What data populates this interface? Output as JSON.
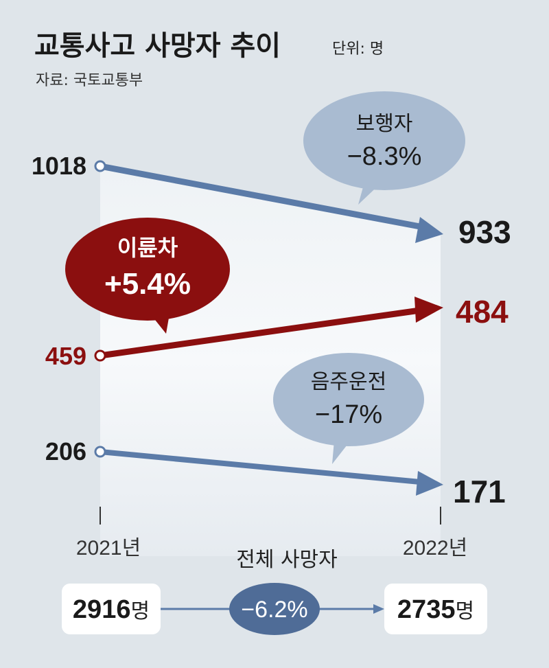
{
  "header": {
    "title": "교통사고 사망자 추이",
    "unit": "단위: 명",
    "source": "자료: 국토교통부"
  },
  "chart_data": {
    "type": "line",
    "x": [
      "2021년",
      "2022년"
    ],
    "series": [
      {
        "name": "보행자",
        "values": [
          1018,
          933
        ],
        "change": "−8.3%",
        "color": "#5b7ba8"
      },
      {
        "name": "이륜차",
        "values": [
          459,
          484
        ],
        "change": "+5.4%",
        "color": "#8b0f0f"
      },
      {
        "name": "음주운전",
        "values": [
          206,
          171
        ],
        "change": "−17%",
        "color": "#5b7ba8"
      }
    ],
    "labels_2021": [
      "1018",
      "459",
      "206"
    ],
    "labels_2022": [
      "933",
      "484",
      "171"
    ]
  },
  "total": {
    "label": "전체 사망자",
    "from": "2916",
    "to": "2735",
    "unit": "명",
    "change": "−6.2%"
  },
  "colors": {
    "background": "#dfe5ea",
    "blue_line": "#5b7ba8",
    "red_line": "#8b0f0f",
    "blue_bubble": "#a9bbd1",
    "red_bubble": "#8b0f0f",
    "oval": "#4f6c97"
  }
}
